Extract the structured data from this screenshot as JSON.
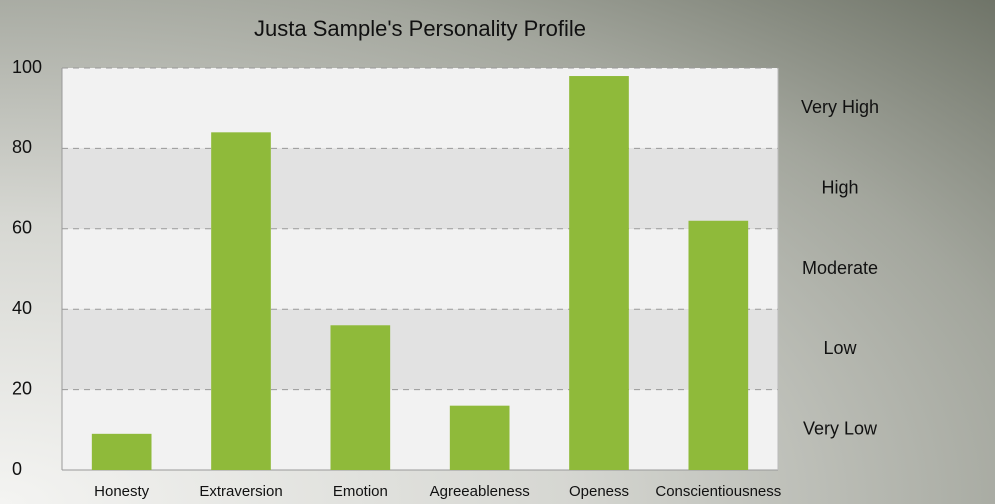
{
  "chart_data": {
    "type": "bar",
    "title": "Justa Sample's Personality Profile",
    "categories": [
      "Honesty",
      "Extraversion",
      "Emotion",
      "Agreeableness",
      "Openess",
      "Conscientiousness"
    ],
    "values": [
      9,
      84,
      36,
      16,
      98,
      62
    ],
    "color": "#8fba3a",
    "ylim": [
      0,
      100
    ],
    "yticks": [
      0,
      20,
      40,
      60,
      80,
      100
    ],
    "grid": true,
    "bands": [
      {
        "label": "Very Low",
        "from": 0,
        "to": 20
      },
      {
        "label": "Low",
        "from": 20,
        "to": 40
      },
      {
        "label": "Moderate",
        "from": 40,
        "to": 60
      },
      {
        "label": "High",
        "from": 60,
        "to": 80
      },
      {
        "label": "Very High",
        "from": 80,
        "to": 100
      }
    ]
  }
}
